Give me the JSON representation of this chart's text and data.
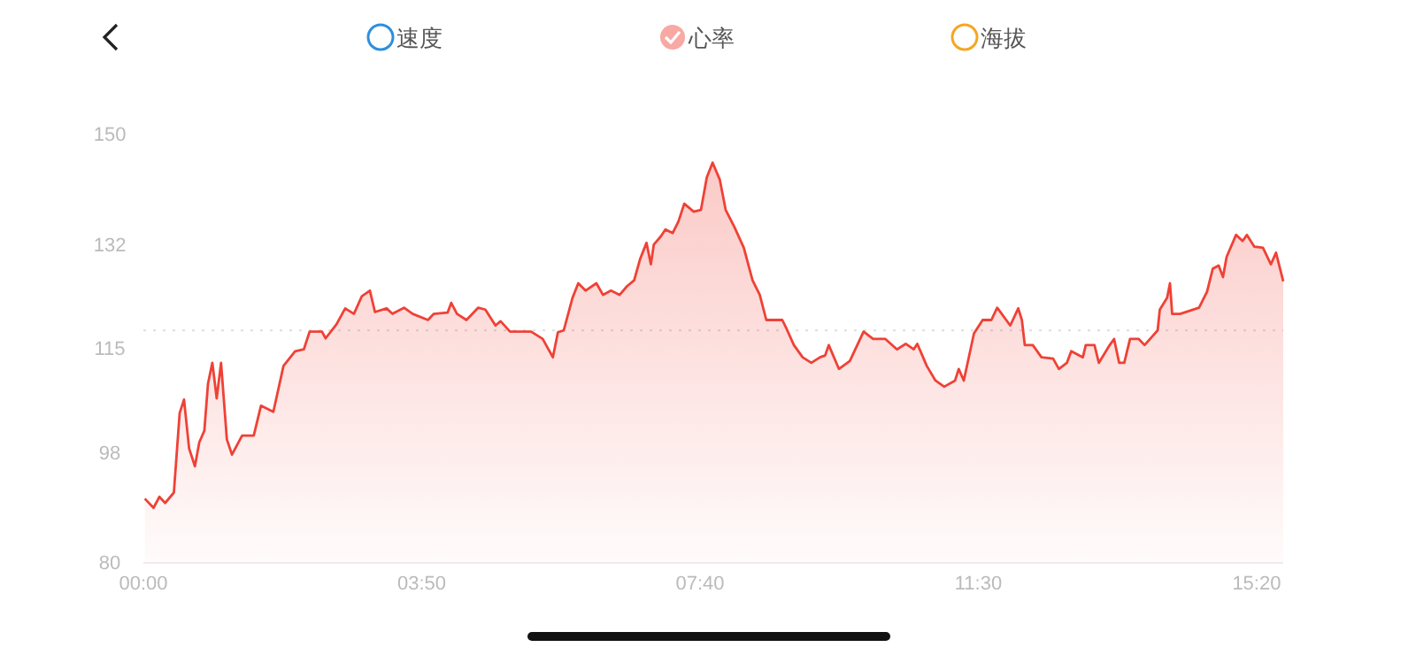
{
  "chart_data": {
    "type": "area",
    "legend": "top",
    "xlim": [
      0,
      15.7
    ],
    "ylim": [
      80,
      150
    ],
    "xticks": [
      {
        "value": 0,
        "label": "00:00"
      },
      {
        "value": 3.8333,
        "label": "03:50"
      },
      {
        "value": 7.6667,
        "label": "07:40"
      },
      {
        "value": 11.5,
        "label": "11:30"
      },
      {
        "value": 15.3333,
        "label": "15:20"
      }
    ],
    "yticks": [
      80,
      98,
      115,
      132,
      150
    ],
    "ref_lines": [
      {
        "axis": "y",
        "value": 118,
        "color": "#dddddd",
        "line_style": "dotted"
      }
    ],
    "series": [
      {
        "name": "速度",
        "color": "#2d8fdd"
      },
      {
        "name": "心率",
        "color": "#ef4136",
        "x": [
          0.02,
          0.14,
          0.22,
          0.3,
          0.42,
          0.5,
          0.56,
          0.63,
          0.71,
          0.77,
          0.84,
          0.89,
          0.95,
          1.01,
          1.07,
          1.15,
          1.22,
          1.36,
          1.52,
          1.62,
          1.79,
          1.85,
          1.93,
          2.09,
          2.21,
          2.29,
          2.46,
          2.51,
          2.66,
          2.78,
          2.9,
          3.01,
          3.12,
          3.19,
          3.35,
          3.43,
          3.59,
          3.71,
          3.92,
          4.0,
          4.19,
          4.24,
          4.32,
          4.45,
          4.61,
          4.71,
          4.85,
          4.92,
          5.05,
          5.34,
          5.5,
          5.64,
          5.71,
          5.79,
          5.91,
          5.99,
          6.09,
          6.24,
          6.33,
          6.44,
          6.56,
          6.66,
          6.76,
          6.84,
          6.93,
          6.99,
          7.03,
          7.13,
          7.19,
          7.29,
          7.37,
          7.45,
          7.58,
          7.68,
          7.76,
          7.84,
          7.94,
          8.02,
          8.14,
          8.27,
          8.39,
          8.49,
          8.58,
          8.8,
          8.85,
          8.96,
          9.08,
          9.2,
          9.32,
          9.39,
          9.44,
          9.58,
          9.73,
          9.92,
          10.05,
          10.22,
          10.38,
          10.5,
          10.61,
          10.66,
          10.79,
          10.91,
          11.03,
          11.18,
          11.23,
          11.3,
          11.44,
          11.56,
          11.68,
          11.76,
          11.94,
          12.05,
          12.1,
          12.14,
          12.25,
          12.37,
          12.53,
          12.61,
          12.72,
          12.78,
          12.94,
          12.98,
          13.1,
          13.16,
          13.31,
          13.37,
          13.44,
          13.51,
          13.59,
          13.71,
          13.79,
          13.97,
          14.0,
          14.1,
          14.14,
          14.17,
          14.28,
          14.54,
          14.65,
          14.73,
          14.81,
          14.87,
          14.92,
          15.05,
          15.14,
          15.2,
          15.3,
          15.42,
          15.53,
          15.6,
          15.7
        ],
        "values": [
          90.5,
          89,
          90.8,
          89.8,
          91.5,
          104.5,
          106.7,
          98.7,
          95.8,
          99.7,
          101.6,
          109.3,
          112.7,
          106.9,
          112.7,
          100.2,
          97.7,
          100.8,
          100.8,
          105.7,
          104.7,
          107.9,
          112.2,
          114.6,
          114.9,
          117.8,
          117.8,
          116.7,
          119,
          121.6,
          120.7,
          123.6,
          124.5,
          121,
          121.6,
          120.7,
          121.7,
          120.7,
          119.7,
          120.7,
          120.9,
          122.5,
          120.7,
          119.7,
          121.7,
          121.4,
          118.8,
          119.5,
          117.8,
          117.8,
          116.6,
          113.6,
          117.7,
          118,
          123.3,
          125.7,
          124.5,
          125.7,
          123.8,
          124.5,
          123.8,
          125.2,
          126.2,
          129.6,
          132.3,
          128.8,
          132,
          133.4,
          134.5,
          133.9,
          135.8,
          138.7,
          137.4,
          137.7,
          143,
          145.4,
          142.6,
          137.7,
          134.9,
          131.5,
          126.2,
          123.8,
          119.7,
          119.7,
          118.5,
          115.6,
          113.6,
          112.7,
          113.6,
          113.9,
          115.6,
          111.7,
          113,
          117.8,
          116.6,
          116.6,
          114.9,
          115.8,
          114.9,
          115.8,
          112.2,
          109.8,
          108.8,
          109.8,
          111.7,
          109.8,
          117.5,
          119.7,
          119.7,
          121.7,
          118.8,
          121.6,
          119.7,
          115.6,
          115.6,
          113.6,
          113.4,
          111.7,
          112.7,
          114.6,
          113.6,
          115.6,
          115.6,
          112.7,
          115.6,
          116.6,
          112.7,
          112.7,
          116.6,
          116.6,
          115.6,
          118,
          121.4,
          123.3,
          125.7,
          120.7,
          120.7,
          121.7,
          124.3,
          128.1,
          128.6,
          126.7,
          130,
          133.6,
          132.6,
          133.6,
          131.7,
          131.5,
          128.8,
          130.7,
          126
        ]
      },
      {
        "name": "海拔",
        "color": "#f5a623"
      }
    ]
  }
}
